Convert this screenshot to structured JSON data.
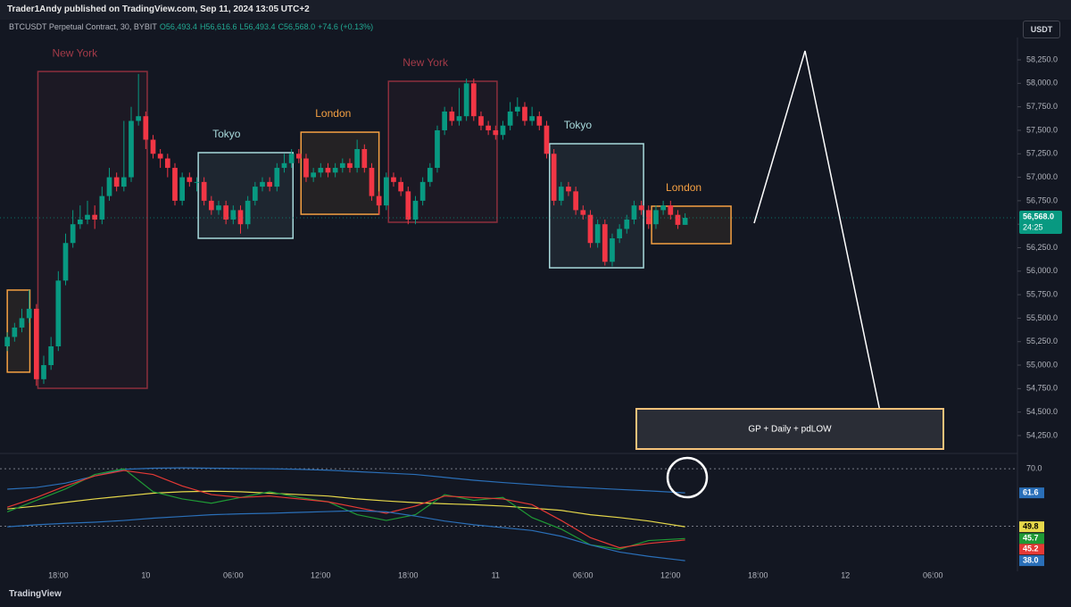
{
  "header": {
    "publisher": "Trader1Andy published on TradingView.com, Sep 11, 2024 13:05 UTC+2",
    "symbol": "BTCUSDT Perpetual Contract, 30, BYBIT",
    "ohlc": [
      "O56,493.4",
      "H56,616.6",
      "L56,493.4",
      "C56,568.0",
      "+74.6 (+0.13%)"
    ],
    "currency": "USDT"
  },
  "footer": {
    "brand": "TradingView"
  },
  "chart_data": {
    "type": "candlestick",
    "up_color": "#089981",
    "down_color": "#f23645",
    "open": [
      55200,
      55300,
      55400,
      55500,
      55600,
      54850,
      55000,
      55200,
      55900,
      56300,
      56500,
      56550,
      56600,
      56550,
      56800,
      57000,
      56900,
      57000,
      57600,
      57650,
      57400,
      57250,
      57200,
      57100,
      56750,
      57000,
      56950,
      56950,
      56750,
      56650,
      56700,
      56550,
      56650,
      56500,
      56750,
      56900,
      56950,
      56900,
      57100,
      57150,
      57250,
      57200,
      57000,
      57050,
      57100,
      57050,
      57100,
      57150,
      57100,
      57300,
      57100,
      56800,
      56700,
      57000,
      56950,
      56850,
      56550,
      56750,
      56950,
      57100,
      57500,
      57700,
      57600,
      57650,
      58000,
      57650,
      57550,
      57500,
      57450,
      57550,
      57700,
      57750,
      57600,
      57650,
      57550,
      57250,
      56750,
      56900,
      56850,
      56650,
      56600,
      56300,
      56500,
      56100,
      56350,
      56450,
      56550,
      56700,
      56650,
      56500,
      56650,
      56700,
      56600,
      56493.4
    ],
    "high": [
      55350,
      55450,
      55600,
      55800,
      55650,
      55100,
      55300,
      56000,
      56400,
      56650,
      56700,
      56750,
      56700,
      56900,
      57100,
      57050,
      57600,
      57750,
      58100,
      57700,
      57450,
      57300,
      57250,
      57150,
      57050,
      57050,
      57000,
      57000,
      56800,
      56750,
      56750,
      56700,
      56700,
      56800,
      56950,
      57000,
      57000,
      57150,
      57250,
      57300,
      57300,
      57250,
      57100,
      57150,
      57150,
      57150,
      57200,
      57200,
      57400,
      57350,
      57150,
      56850,
      57050,
      57050,
      57000,
      56900,
      56800,
      57000,
      57150,
      57550,
      57750,
      57750,
      57950,
      58050,
      58050,
      57700,
      57600,
      57550,
      57600,
      57800,
      57850,
      57800,
      57750,
      57700,
      57600,
      57300,
      56950,
      56950,
      56900,
      56700,
      56650,
      56550,
      56550,
      56400,
      56500,
      56600,
      56750,
      56750,
      56700,
      56700,
      56750,
      56750,
      56650,
      56616.6
    ],
    "low": [
      55150,
      55250,
      55350,
      55450,
      54780,
      54800,
      54950,
      55150,
      55850,
      56250,
      56450,
      56500,
      56450,
      56500,
      56750,
      56850,
      56850,
      56950,
      57550,
      57300,
      57200,
      57100,
      57000,
      56700,
      56700,
      56900,
      56850,
      56700,
      56600,
      56600,
      56500,
      56500,
      56400,
      56450,
      56700,
      56850,
      56850,
      56850,
      57050,
      57100,
      57150,
      56950,
      56950,
      57000,
      57000,
      57000,
      57050,
      57050,
      57050,
      57050,
      56750,
      56600,
      56650,
      56900,
      56800,
      56500,
      56500,
      56700,
      56900,
      57050,
      57450,
      57550,
      57550,
      57600,
      57600,
      57500,
      57450,
      57400,
      57400,
      57500,
      57650,
      57550,
      57550,
      57500,
      57200,
      56700,
      56700,
      56800,
      56600,
      56550,
      56250,
      56250,
      56060,
      56050,
      56300,
      56400,
      56500,
      56600,
      56450,
      56450,
      56600,
      56550,
      56450,
      56493.4
    ],
    "close": [
      55300,
      55400,
      55500,
      55600,
      54850,
      55000,
      55200,
      55900,
      56300,
      56500,
      56550,
      56600,
      56550,
      56800,
      57000,
      56900,
      57000,
      57600,
      57650,
      57400,
      57250,
      57200,
      57100,
      56750,
      57000,
      56950,
      56950,
      56750,
      56650,
      56700,
      56550,
      56650,
      56500,
      56750,
      56900,
      56950,
      56900,
      57100,
      57150,
      57250,
      57200,
      57000,
      57050,
      57100,
      57050,
      57100,
      57150,
      57100,
      57300,
      57100,
      56800,
      56700,
      57000,
      56950,
      56850,
      56550,
      56750,
      56950,
      57100,
      57500,
      57700,
      57600,
      57650,
      58000,
      57650,
      57550,
      57500,
      57450,
      57550,
      57700,
      57750,
      57600,
      57650,
      57550,
      57250,
      56750,
      56900,
      56850,
      56650,
      56600,
      56300,
      56500,
      56100,
      56350,
      56450,
      56550,
      56700,
      56650,
      56500,
      56650,
      56700,
      56600,
      56493.4,
      56568
    ],
    "price_label": "56,568.0",
    "countdown": "24:25",
    "xlim": [
      -1,
      138.6
    ],
    "xticks": [
      {
        "value": 7,
        "label": "18:00"
      },
      {
        "value": 19,
        "label": "10"
      },
      {
        "value": 31,
        "label": "06:00"
      },
      {
        "value": 43,
        "label": "12:00"
      },
      {
        "value": 55,
        "label": "18:00"
      },
      {
        "value": 67,
        "label": "11"
      },
      {
        "value": 79,
        "label": "06:00"
      },
      {
        "value": 91,
        "label": "12:00"
      },
      {
        "value": 103,
        "label": "18:00"
      },
      {
        "value": 115,
        "label": "12"
      },
      {
        "value": 127,
        "label": "06:00"
      }
    ],
    "ylim": [
      54069,
      58488
    ],
    "yticks": [
      {
        "value": 54250,
        "label": "54,250.0"
      },
      {
        "value": 54500,
        "label": "54,500.0"
      },
      {
        "value": 54750,
        "label": "54,750.0"
      },
      {
        "value": 55000,
        "label": "55,000.0"
      },
      {
        "value": 55250,
        "label": "55,250.0"
      },
      {
        "value": 55500,
        "label": "55,500.0"
      },
      {
        "value": 55750,
        "label": "55,750.0"
      },
      {
        "value": 56000,
        "label": "56,000.0"
      },
      {
        "value": 56250,
        "label": "56,250.0"
      },
      {
        "value": 56500,
        "label": "56,500.0"
      },
      {
        "value": 56750,
        "label": "56,750.0"
      },
      {
        "value": 57000,
        "label": "57,000.0"
      },
      {
        "value": 57250,
        "label": "57,250.0"
      },
      {
        "value": 57500,
        "label": "57,500.0"
      },
      {
        "value": 57750,
        "label": "57,750.0"
      },
      {
        "value": 58000,
        "label": "58,000.0"
      },
      {
        "value": 58250,
        "label": "58,250.0"
      }
    ],
    "sessions": [
      {
        "x0": 0,
        "x1": 3.1,
        "top": 55799,
        "bottom": 54925,
        "color": "#f5a042"
      },
      {
        "label": "New York",
        "x0": 4.2,
        "x1": 19.2,
        "top": 58126,
        "bottom": 54753,
        "color": "#8c2f3d"
      },
      {
        "label": "Tokyo",
        "x0": 26.2,
        "x1": 39.2,
        "top": 57262,
        "bottom": 56350,
        "color": "#a8dadc"
      },
      {
        "label": "London",
        "x0": 40.3,
        "x1": 51,
        "top": 57480,
        "bottom": 56606,
        "color": "#f5a042"
      },
      {
        "label": "New York",
        "x0": 52.3,
        "x1": 67.2,
        "top": 58022,
        "bottom": 56521,
        "color": "#8c2f3d"
      },
      {
        "label": "Tokyo",
        "x0": 74.4,
        "x1": 87.3,
        "top": 57357,
        "bottom": 56036,
        "color": "#a8dadc"
      },
      {
        "label": "London",
        "x0": 88.4,
        "x1": 99.3,
        "top": 56692,
        "bottom": 56293,
        "color": "#f5a042"
      }
    ],
    "note": "GP + Daily + pdLOW",
    "indicator": {
      "ylim": [
        34.3,
        74.7
      ],
      "yticks": [
        {
          "value": 70,
          "label": "70.0"
        }
      ],
      "levels": [
        50
      ],
      "x": [
        0,
        4,
        8,
        12,
        16,
        20,
        24,
        28,
        32,
        36,
        40,
        44,
        48,
        52,
        56,
        60,
        64,
        68,
        72,
        76,
        80,
        84,
        88,
        93
      ],
      "series": [
        {
          "color": "#2a6fb8",
          "last_label": "61.6",
          "values": [
            62.9,
            63.5,
            65.0,
            67.5,
            69.8,
            70.2,
            70.3,
            70.2,
            70.1,
            70.0,
            69.8,
            69.5,
            69.0,
            68.5,
            68.0,
            67.0,
            66.0,
            65.2,
            64.5,
            63.8,
            63.3,
            62.8,
            62.3,
            61.6
          ]
        },
        {
          "color": "#e6d84a",
          "last_label": "49.8",
          "values": [
            56.0,
            57.0,
            58.3,
            59.5,
            60.5,
            61.5,
            62.0,
            62.2,
            62.0,
            61.5,
            61.0,
            60.5,
            59.5,
            58.8,
            58.2,
            57.8,
            57.5,
            57.0,
            56.3,
            55.5,
            54.0,
            53.0,
            51.8,
            49.8
          ]
        },
        {
          "color": "#1f9a35",
          "last_label": "45.7",
          "values": [
            55.0,
            59.0,
            63.0,
            68.0,
            70.0,
            62.0,
            59.5,
            58.0,
            60.0,
            62.0,
            60.0,
            58.5,
            54.0,
            52.0,
            54.0,
            61.0,
            59.0,
            60.0,
            53.0,
            49.0,
            43.5,
            42.0,
            45.0,
            45.7
          ]
        },
        {
          "color": "#e53935",
          "last_label": "45.2",
          "values": [
            56.6,
            60.0,
            64.0,
            67.5,
            69.4,
            68.0,
            64.0,
            61.0,
            60.0,
            60.5,
            59.5,
            58.5,
            56.5,
            54.5,
            57.0,
            60.5,
            60.0,
            59.5,
            57.5,
            52.0,
            46.0,
            42.5,
            44.0,
            45.2
          ]
        },
        {
          "color": "#2a6fb8",
          "last_label": "38.0",
          "values": [
            49.8,
            50.5,
            51.0,
            51.4,
            52.0,
            52.8,
            53.4,
            54.0,
            54.3,
            54.5,
            54.8,
            55.1,
            55.4,
            55.0,
            53.5,
            51.8,
            50.5,
            49.5,
            48.5,
            46.5,
            43.5,
            41.0,
            39.5,
            38.0
          ]
        }
      ]
    }
  }
}
